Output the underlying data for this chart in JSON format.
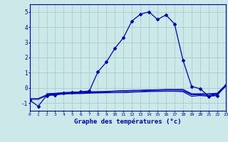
{
  "background_color": "#cce8e8",
  "grid_color": "#aacccc",
  "line_color": "#0000bb",
  "xlabel": "Graphe des températures (°c)",
  "xlim": [
    0,
    23
  ],
  "ylim": [
    -1.5,
    5.5
  ],
  "yticks": [
    -1,
    0,
    1,
    2,
    3,
    4,
    5
  ],
  "xticks": [
    0,
    1,
    2,
    3,
    4,
    5,
    6,
    7,
    8,
    9,
    10,
    11,
    12,
    13,
    14,
    15,
    16,
    17,
    18,
    19,
    20,
    21,
    22,
    23
  ],
  "main_line": {
    "x": [
      0,
      1,
      2,
      3,
      4,
      5,
      6,
      7,
      8,
      9,
      10,
      11,
      12,
      13,
      14,
      15,
      16,
      17,
      18,
      19,
      20,
      21,
      22,
      23
    ],
    "y": [
      -0.8,
      -1.2,
      -0.5,
      -0.45,
      -0.35,
      -0.3,
      -0.25,
      -0.2,
      1.05,
      1.7,
      2.6,
      3.3,
      4.4,
      4.85,
      5.0,
      4.5,
      4.8,
      4.2,
      1.8,
      0.1,
      -0.05,
      -0.55,
      -0.5,
      0.2
    ]
  },
  "flat_lines": [
    {
      "x": [
        0,
        1,
        2,
        3,
        4,
        5,
        6,
        7,
        8,
        9,
        10,
        11,
        12,
        13,
        14,
        15,
        16,
        17,
        18,
        19,
        20,
        21,
        22,
        23
      ],
      "y": [
        -0.7,
        -0.7,
        -0.45,
        -0.4,
        -0.35,
        -0.35,
        -0.35,
        -0.3,
        -0.3,
        -0.3,
        -0.3,
        -0.3,
        -0.25,
        -0.25,
        -0.2,
        -0.2,
        -0.2,
        -0.2,
        -0.2,
        -0.45,
        -0.45,
        -0.5,
        -0.4,
        0.15
      ]
    },
    {
      "x": [
        0,
        1,
        2,
        3,
        4,
        5,
        6,
        7,
        8,
        9,
        10,
        11,
        12,
        13,
        14,
        15,
        16,
        17,
        18,
        19,
        20,
        21,
        22,
        23
      ],
      "y": [
        -0.75,
        -0.75,
        -0.5,
        -0.45,
        -0.4,
        -0.38,
        -0.37,
        -0.35,
        -0.33,
        -0.32,
        -0.31,
        -0.3,
        -0.28,
        -0.26,
        -0.24,
        -0.23,
        -0.22,
        -0.22,
        -0.25,
        -0.55,
        -0.5,
        -0.55,
        -0.45,
        0.1
      ]
    },
    {
      "x": [
        2,
        3,
        4,
        5,
        6,
        7,
        8,
        9,
        10,
        11,
        12,
        13,
        14,
        15,
        16,
        17,
        18,
        19,
        20,
        21,
        22,
        23
      ],
      "y": [
        -0.42,
        -0.38,
        -0.33,
        -0.32,
        -0.3,
        -0.28,
        -0.27,
        -0.26,
        -0.22,
        -0.2,
        -0.18,
        -0.17,
        -0.15,
        -0.14,
        -0.12,
        -0.12,
        -0.12,
        -0.42,
        -0.42,
        -0.42,
        -0.38,
        0.18
      ]
    },
    {
      "x": [
        2,
        3,
        4,
        5,
        6,
        7,
        8,
        9,
        10,
        11,
        12,
        13,
        14,
        15,
        16,
        17,
        18,
        19,
        20,
        21,
        22,
        23
      ],
      "y": [
        -0.38,
        -0.35,
        -0.3,
        -0.28,
        -0.27,
        -0.25,
        -0.24,
        -0.23,
        -0.2,
        -0.18,
        -0.16,
        -0.15,
        -0.13,
        -0.12,
        -0.1,
        -0.1,
        -0.1,
        -0.38,
        -0.38,
        -0.38,
        -0.35,
        0.2
      ]
    }
  ]
}
